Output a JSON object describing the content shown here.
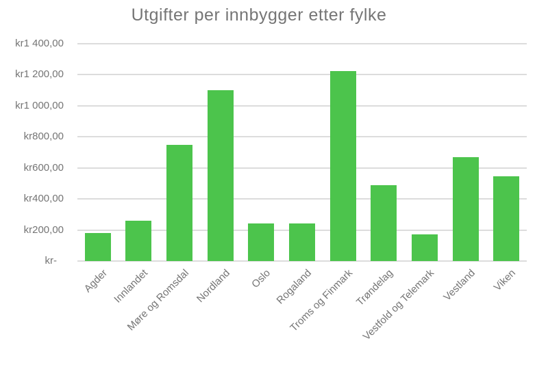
{
  "chart": {
    "title": "Utgifter per innbygger etter fylke"
  },
  "chart_data": {
    "type": "bar",
    "title": "Utgifter per innbygger etter fylke",
    "categories": [
      "Agder",
      "Innlandet",
      "Møre og Romsdal",
      "Nordland",
      "Oslo",
      "Rogaland",
      "Troms og Finmark",
      "Trøndelag",
      "Vestfold og Telemark",
      "Vestland",
      "Viken"
    ],
    "values": [
      180,
      260,
      750,
      1100,
      240,
      240,
      1225,
      490,
      170,
      670,
      545
    ],
    "xlabel": "",
    "ylabel": "",
    "ylim": [
      0,
      1400
    ],
    "ytick_values": [
      0,
      200,
      400,
      600,
      800,
      1000,
      1200,
      1400
    ],
    "ytick_labels": [
      "kr-",
      "kr200,00",
      "kr400,00",
      "kr600,00",
      "kr800,00",
      "kr1 000,00",
      "kr1 200,00",
      "kr1 400,00"
    ],
    "grid": true,
    "legend_position": "none",
    "bar_color": "#4cc44c",
    "gridline_color": "#dcdcdc",
    "text_color": "#757575",
    "background_color": "#ffffff",
    "currency_prefix": "kr",
    "zero_tick_style": "accounting-dash"
  }
}
